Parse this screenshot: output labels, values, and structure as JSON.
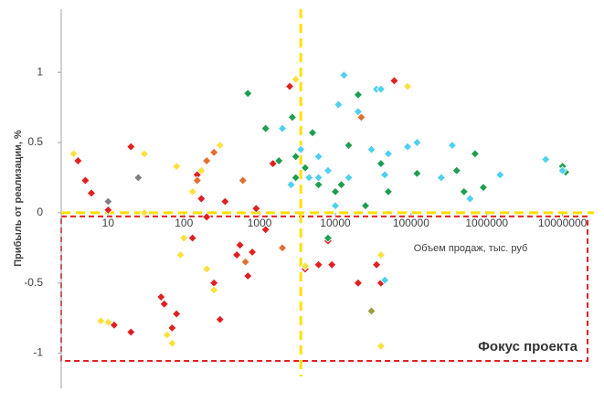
{
  "chart_data": {
    "type": "scatter",
    "y_label": "Прибыль от реализации, %",
    "x_label": "Объем продаж, тыс. руб",
    "annotation": "Фокус проекта",
    "xscale": "log",
    "xlim": [
      2.4,
      26000000
    ],
    "ylim": [
      -1.25,
      1.45
    ],
    "xticks": [
      10,
      100,
      1000,
      10000,
      100000,
      1000000,
      10000000
    ],
    "yticks": [
      -1,
      -0.5,
      0,
      0.5,
      1
    ],
    "reference_lines": {
      "x": 3500,
      "y": 0,
      "color": "#ffe000"
    },
    "focus_color": "#e02020",
    "series": [
      {
        "color": "#e02020",
        "x": [
          4,
          5,
          6,
          20,
          10,
          50,
          55,
          70,
          80,
          12,
          20,
          130,
          150,
          170,
          200,
          250,
          300,
          350,
          500,
          550,
          700,
          800,
          1200,
          2500,
          4000,
          6000,
          8000,
          9000,
          20000,
          35000,
          40000,
          60000,
          900,
          1500
        ],
        "values": [
          0.37,
          0.23,
          0.14,
          0.47,
          0.02,
          -0.6,
          -0.65,
          -0.82,
          -0.72,
          -0.8,
          -0.85,
          -0.18,
          0.27,
          0.1,
          -0.03,
          -0.5,
          -0.76,
          0.08,
          -0.3,
          -0.23,
          -0.45,
          -0.28,
          -0.12,
          0.9,
          -0.4,
          -0.37,
          -0.2,
          -0.37,
          -0.5,
          -0.37,
          -0.5,
          0.94,
          0.03,
          0.35
        ]
      },
      {
        "color": "#ffe040",
        "x": [
          3.5,
          8,
          10,
          30,
          60,
          70,
          80,
          90,
          100,
          130,
          170,
          200,
          300,
          250,
          3000,
          4000,
          40000,
          40000,
          90000,
          30
        ],
        "values": [
          0.42,
          -0.77,
          -0.78,
          0.42,
          -0.87,
          -0.93,
          0.33,
          -0.3,
          -0.18,
          0.15,
          0.3,
          -0.4,
          0.48,
          -0.55,
          0.95,
          -0.38,
          -0.95,
          -0.3,
          0.9,
          0.0
        ]
      },
      {
        "color": "#1e9e50",
        "x": [
          700,
          1200,
          1800,
          2700,
          3000,
          4000,
          5000,
          6000,
          10000,
          12000,
          15000,
          20000,
          25000,
          40000,
          50000,
          120000,
          400000,
          500000,
          700000,
          900000,
          10000000,
          11000000,
          8000,
          3000
        ],
        "values": [
          0.85,
          0.6,
          0.37,
          0.68,
          0.4,
          0.32,
          0.57,
          0.2,
          0.15,
          0.2,
          0.48,
          0.84,
          0.05,
          0.35,
          0.15,
          0.28,
          0.3,
          0.15,
          0.42,
          0.18,
          0.33,
          0.29,
          -0.18,
          0.25
        ]
      },
      {
        "color": "#50d0f0",
        "x": [
          2000,
          2600,
          3500,
          4500,
          6000,
          8000,
          11000,
          13000,
          15000,
          20000,
          30000,
          35000,
          40000,
          50000,
          45000,
          90000,
          120000,
          250000,
          350000,
          600000,
          1500000,
          6000000,
          10000000,
          45000,
          6000,
          10000
        ],
        "values": [
          0.6,
          0.2,
          0.45,
          0.25,
          0.4,
          0.3,
          0.77,
          0.98,
          0.25,
          0.72,
          0.45,
          0.88,
          0.88,
          0.42,
          0.27,
          0.47,
          0.5,
          0.25,
          0.48,
          0.1,
          0.27,
          0.38,
          0.3,
          -0.48,
          0.25,
          0.05
        ]
      },
      {
        "color": "#e07030",
        "x": [
          150,
          200,
          250,
          600,
          2000,
          650,
          22000
        ],
        "values": [
          0.23,
          0.37,
          0.43,
          0.23,
          -0.25,
          -0.35,
          0.68
        ]
      },
      {
        "color": "#808080",
        "x": [
          10,
          25
        ],
        "values": [
          0.08,
          0.25
        ]
      },
      {
        "color": "#9aa040",
        "x": [
          30000
        ],
        "values": [
          -0.7
        ]
      }
    ]
  }
}
